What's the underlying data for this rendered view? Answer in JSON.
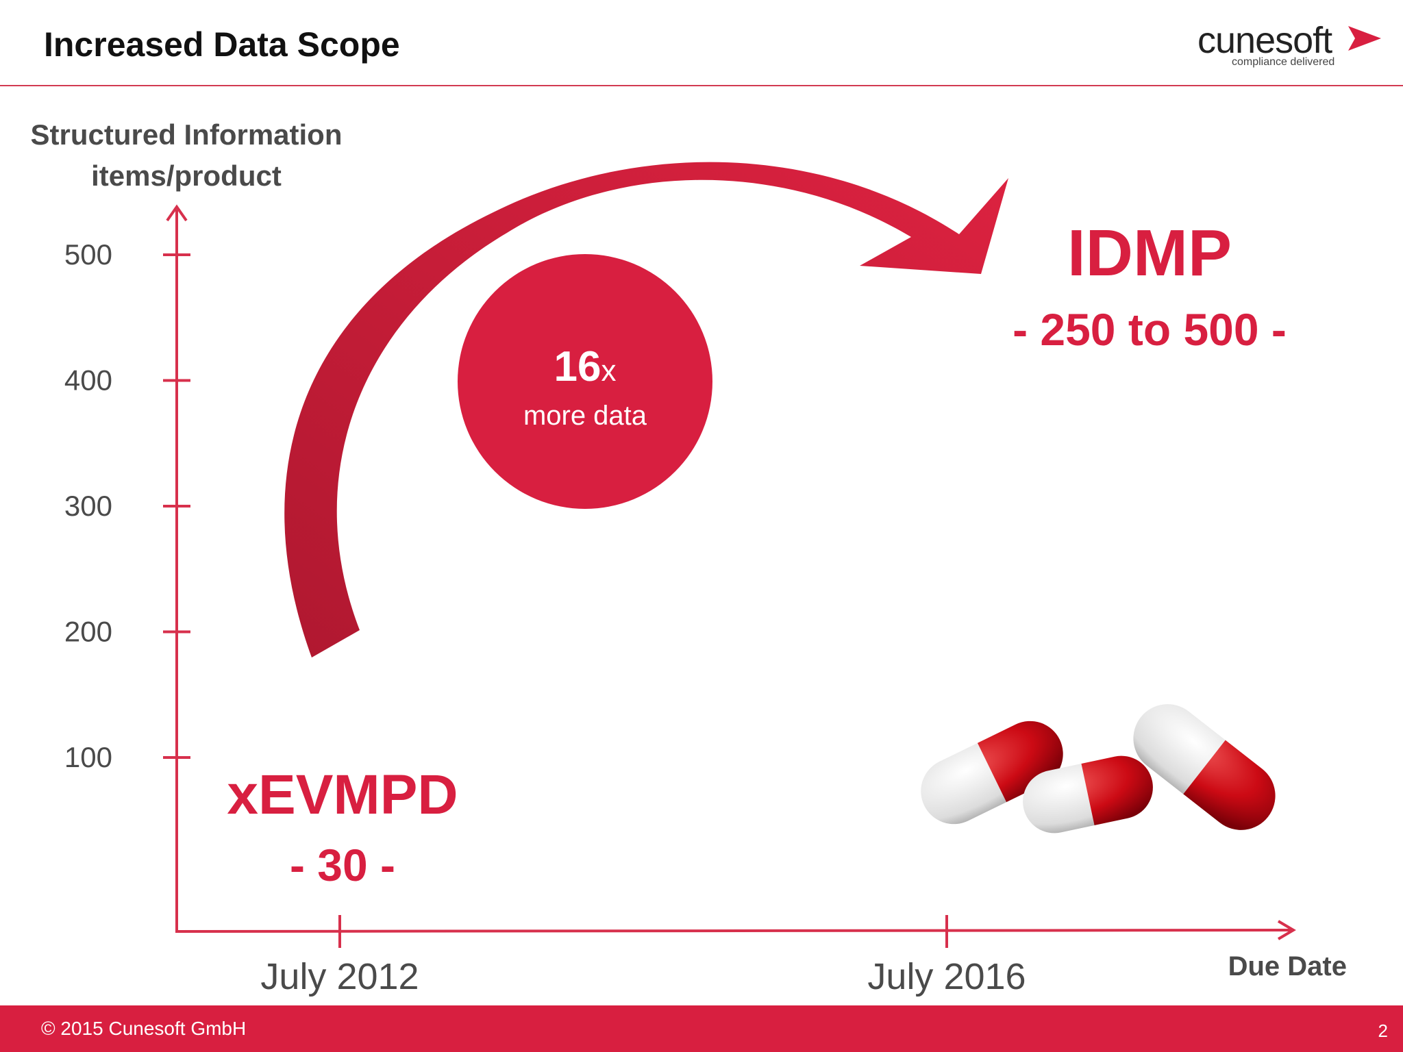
{
  "slide": {
    "title": "Increased Data Scope",
    "page_number": "2"
  },
  "logo": {
    "name": "cunesoft",
    "tagline": "compliance delivered"
  },
  "footer": {
    "copyright": "© 2015 Cunesoft GmbH"
  },
  "colors": {
    "accent": "#d81f40",
    "axis": "#d7304c",
    "text_dark": "#4a4a4a"
  },
  "callout": {
    "multiplier": "16",
    "multiplier_suffix": "x",
    "text": "more data"
  },
  "chart_data": {
    "type": "scatter",
    "ylabel_line1": "Structured Information",
    "ylabel_line2": "items/product",
    "xlabel": "Due Date",
    "ylim": [
      0,
      500
    ],
    "y_ticks": [
      100,
      200,
      300,
      400,
      500
    ],
    "x_categories": [
      "July 2012",
      "July 2016"
    ],
    "points": [
      {
        "x": "July 2012",
        "label": "xEVMPD",
        "value_label": "- 30 -",
        "value": 30
      },
      {
        "x": "July 2016",
        "label": "IDMP",
        "value_label": "- 250 to 500 -",
        "value_range": [
          250,
          500
        ]
      }
    ]
  }
}
